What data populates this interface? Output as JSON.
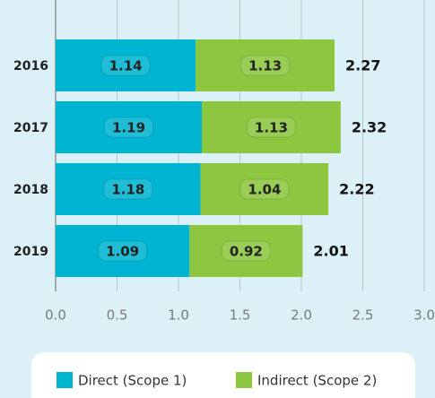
{
  "chart_data": {
    "type": "bar",
    "orientation": "horizontal",
    "stacked": true,
    "categories": [
      "2016",
      "2017",
      "2018",
      "2019"
    ],
    "series": [
      {
        "name": "Direct (Scope 1)",
        "color": "#00b5d1",
        "values": [
          1.14,
          1.19,
          1.18,
          1.09
        ]
      },
      {
        "name": "Indirect (Scope 2)",
        "color": "#8dc63f",
        "values": [
          1.13,
          1.13,
          1.04,
          0.92
        ]
      }
    ],
    "totals": [
      2.27,
      2.32,
      2.22,
      2.01
    ],
    "xlim": [
      0,
      3.0
    ],
    "xticks": [
      {
        "value": 0,
        "label": "0.0"
      },
      {
        "value": 0.5,
        "label": "0.5"
      },
      {
        "value": 1,
        "label": "1.0"
      },
      {
        "value": 1.5,
        "label": "1.5"
      },
      {
        "value": 2,
        "label": "2.0"
      },
      {
        "value": 2.5,
        "label": "2.5"
      },
      {
        "value": 3,
        "label": "3.0"
      }
    ],
    "grid": true,
    "legend": "bottom"
  }
}
